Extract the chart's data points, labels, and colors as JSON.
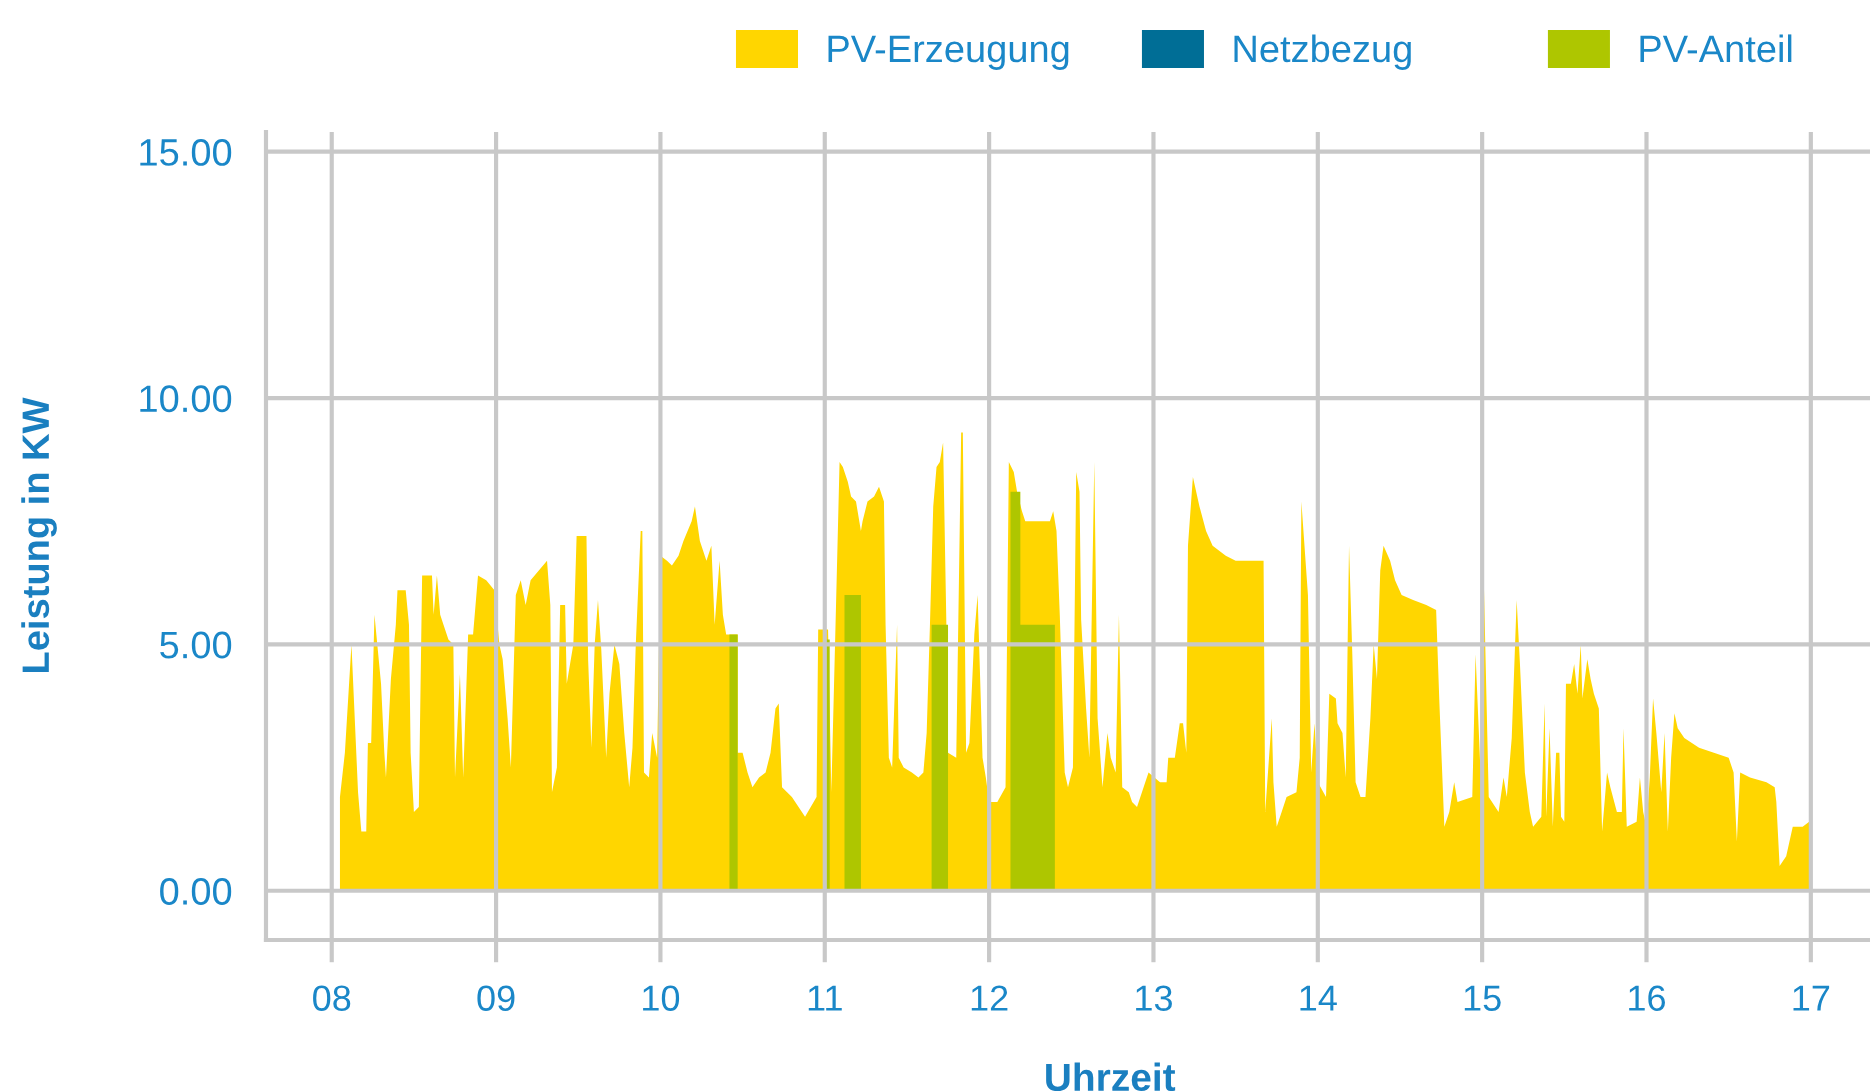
{
  "chart_data": {
    "type": "area",
    "xlabel": "Uhrzeit",
    "ylabel": "Leistung in KW",
    "xlim": [
      7.6,
      17.36
    ],
    "ylim": [
      -1,
      15.4
    ],
    "xticks": [
      {
        "value": 8,
        "label": "08"
      },
      {
        "value": 9,
        "label": "09"
      },
      10,
      11,
      12,
      13,
      14,
      15,
      16,
      17
    ],
    "yticks": [
      {
        "value": 0,
        "label": "0.00"
      },
      {
        "value": 5,
        "label": "5.00"
      },
      {
        "value": 10,
        "label": "10.00"
      },
      {
        "value": 15,
        "label": "15.00"
      }
    ],
    "grid": true,
    "legend": "top right",
    "series": [
      {
        "name": "PV-Erzeugung",
        "color": "#ffd600",
        "x": [
          8.05,
          8.08,
          8.12,
          8.16,
          8.18,
          8.21,
          8.22,
          8.24,
          8.26,
          8.3,
          8.32,
          8.33,
          8.36,
          8.39,
          8.4,
          8.45,
          8.47,
          8.48,
          8.5,
          8.53,
          8.55,
          8.61,
          8.62,
          8.64,
          8.66,
          8.68,
          8.71,
          8.74,
          8.75,
          8.78,
          8.8,
          8.83,
          8.86,
          8.89,
          8.94,
          8.99,
          9.02,
          9.04,
          9.07,
          9.09,
          9.12,
          9.15,
          9.18,
          9.21,
          9.26,
          9.31,
          9.33,
          9.34,
          9.37,
          9.39,
          9.42,
          9.43,
          9.47,
          9.49,
          9.55,
          9.56,
          9.58,
          9.6,
          9.62,
          9.64,
          9.67,
          9.69,
          9.72,
          9.75,
          9.78,
          9.81,
          9.83,
          9.85,
          9.88,
          9.89,
          9.9,
          9.93,
          9.95,
          9.98,
          10.0,
          10.04,
          10.07,
          10.11,
          10.14,
          10.19,
          10.21,
          10.24,
          10.28,
          10.31,
          10.33,
          10.36,
          10.38,
          10.4,
          10.47,
          10.47,
          10.5,
          10.53,
          10.56,
          10.6,
          10.64,
          10.67,
          10.7,
          10.72,
          10.74,
          10.8,
          10.88,
          10.95,
          10.96,
          10.99,
          11.02,
          11.04,
          11.07,
          11.09,
          11.11,
          11.14,
          11.16,
          11.19,
          11.22,
          11.23,
          11.26,
          11.3,
          11.33,
          11.36,
          11.37,
          11.39,
          11.41,
          11.44,
          11.45,
          11.48,
          11.53,
          11.57,
          11.6,
          11.62,
          11.64,
          11.66,
          11.68,
          11.7,
          11.72,
          11.74,
          11.75,
          11.8,
          11.83,
          11.84,
          11.86,
          11.88,
          11.91,
          11.93,
          11.96,
          11.98,
          12.0,
          12.05,
          12.1,
          12.12,
          12.15,
          12.17,
          12.2,
          12.22,
          12.37,
          12.39,
          12.41,
          12.43,
          12.46,
          12.48,
          12.51,
          12.53,
          12.55,
          12.56,
          12.59,
          12.61,
          12.64,
          12.66,
          12.69,
          12.72,
          12.74,
          12.77,
          12.79,
          12.81,
          12.85,
          12.87,
          12.9,
          12.94,
          12.97,
          13.04,
          13.08,
          13.09,
          13.13,
          13.16,
          13.18,
          13.2,
          13.21,
          13.24,
          13.28,
          13.32,
          13.36,
          13.44,
          13.5,
          13.67,
          13.68,
          13.72,
          13.73,
          13.75,
          13.78,
          13.81,
          13.87,
          13.89,
          13.9,
          13.94,
          13.96,
          13.98,
          14.0,
          14.05,
          14.07,
          14.11,
          14.12,
          14.15,
          14.17,
          14.19,
          14.21,
          14.23,
          14.26,
          14.29,
          14.32,
          14.34,
          14.36,
          14.38,
          14.4,
          14.44,
          14.47,
          14.51,
          14.58,
          14.66,
          14.72,
          14.74,
          14.77,
          14.8,
          14.83,
          14.85,
          14.94,
          14.96,
          14.99,
          15.01,
          15.04,
          15.1,
          15.13,
          15.15,
          15.18,
          15.21,
          15.23,
          15.26,
          15.29,
          15.31,
          15.36,
          15.38,
          15.39,
          15.41,
          15.43,
          15.45,
          15.47,
          15.48,
          15.5,
          15.51,
          15.54,
          15.56,
          15.58,
          15.6,
          15.61,
          15.64,
          15.66,
          15.68,
          15.71,
          15.73,
          15.76,
          15.78,
          15.82,
          15.85,
          15.86,
          15.88,
          15.94,
          15.96,
          15.98,
          16.0,
          16.02,
          16.04,
          16.06,
          16.09,
          16.11,
          16.13,
          16.15,
          16.17,
          16.19,
          16.23,
          16.32,
          16.41,
          16.5,
          16.53,
          16.55,
          16.57,
          16.63,
          16.73,
          16.78,
          16.79,
          16.81,
          16.85,
          16.89,
          16.95,
          16.99,
          17.0
        ],
        "values": [
          1.9,
          2.8,
          5.0,
          2.0,
          1.2,
          1.2,
          3.0,
          3.0,
          5.6,
          4.2,
          2.8,
          2.3,
          4.3,
          5.4,
          6.1,
          6.1,
          5.4,
          2.8,
          1.6,
          1.7,
          6.4,
          6.4,
          5.6,
          6.4,
          5.6,
          5.4,
          5.1,
          5.0,
          2.3,
          4.4,
          2.3,
          5.2,
          5.2,
          6.4,
          6.3,
          6.1,
          5.0,
          4.7,
          3.5,
          2.5,
          6.0,
          6.3,
          5.8,
          6.3,
          6.5,
          6.7,
          5.8,
          2.0,
          2.5,
          5.8,
          5.8,
          4.2,
          5.0,
          7.2,
          7.2,
          4.7,
          2.9,
          5.0,
          5.9,
          4.9,
          2.7,
          4.0,
          5.0,
          4.6,
          3.2,
          2.1,
          2.9,
          5.0,
          7.3,
          7.3,
          2.4,
          2.3,
          3.2,
          2.7,
          6.8,
          6.7,
          6.6,
          6.8,
          7.1,
          7.5,
          7.8,
          7.1,
          6.7,
          7.0,
          5.4,
          6.7,
          5.6,
          5.2,
          5.2,
          2.8,
          2.8,
          2.4,
          2.1,
          2.3,
          2.4,
          2.8,
          3.7,
          3.8,
          2.1,
          1.9,
          1.5,
          1.9,
          5.3,
          5.3,
          5.3,
          2.0,
          6.0,
          8.7,
          8.6,
          8.3,
          8.0,
          7.9,
          7.3,
          7.5,
          7.9,
          8.0,
          8.2,
          7.9,
          5.4,
          2.7,
          2.5,
          5.4,
          2.7,
          2.5,
          2.4,
          2.3,
          2.4,
          3.2,
          5.4,
          7.8,
          8.6,
          8.7,
          9.1,
          5.4,
          2.8,
          2.7,
          9.3,
          9.3,
          2.8,
          3.0,
          5.2,
          6.0,
          2.7,
          2.3,
          1.8,
          1.8,
          2.1,
          8.7,
          8.5,
          8.1,
          7.7,
          7.5,
          7.5,
          7.7,
          7.3,
          5.6,
          2.4,
          2.1,
          2.5,
          8.5,
          8.1,
          5.5,
          3.7,
          2.7,
          8.7,
          3.5,
          2.1,
          3.2,
          2.7,
          2.4,
          5.6,
          2.1,
          2.0,
          1.8,
          1.7,
          2.1,
          2.4,
          2.2,
          2.2,
          2.7,
          2.7,
          3.4,
          3.4,
          2.8,
          7.0,
          8.4,
          7.8,
          7.3,
          7.0,
          6.8,
          6.7,
          6.7,
          1.6,
          3.5,
          2.2,
          1.3,
          1.6,
          1.9,
          2.0,
          2.7,
          7.9,
          6.0,
          2.4,
          3.4,
          2.2,
          1.9,
          4.0,
          3.9,
          3.4,
          3.2,
          2.3,
          7.0,
          4.8,
          2.2,
          1.9,
          1.9,
          3.5,
          5.0,
          4.3,
          6.5,
          7.0,
          6.7,
          6.3,
          6.0,
          5.9,
          5.8,
          5.7,
          3.8,
          1.3,
          1.6,
          2.2,
          1.8,
          1.9,
          4.8,
          2.4,
          6.3,
          1.9,
          1.6,
          2.3,
          1.9,
          3.1,
          5.9,
          4.6,
          2.4,
          1.6,
          1.3,
          1.5,
          3.8,
          1.5,
          3.3,
          1.3,
          2.8,
          2.8,
          1.5,
          1.4,
          4.2,
          4.2,
          4.6,
          4.0,
          5.0,
          3.9,
          4.7,
          4.3,
          4.0,
          3.7,
          1.2,
          2.4,
          2.1,
          1.6,
          1.6,
          3.3,
          1.3,
          1.4,
          2.3,
          1.6,
          1.3,
          2.3,
          3.9,
          3.2,
          2.0,
          3.2,
          1.2,
          2.7,
          3.6,
          3.3,
          3.1,
          2.9,
          2.8,
          2.7,
          2.4,
          1.0,
          2.4,
          2.3,
          2.2,
          2.1,
          1.8,
          0.5,
          0.7,
          1.3,
          1.3,
          1.4,
          1.4
        ]
      },
      {
        "name": "Netzbezug",
        "color": "#006e96"
      },
      {
        "name": "PV-Anteil",
        "color": "#aec600",
        "x": [
          10.42,
          10.42,
          10.47,
          10.47,
          11.01,
          11.01,
          11.03,
          11.03,
          11.12,
          11.12,
          11.22,
          11.22,
          11.65,
          11.65,
          11.75,
          11.75,
          12.13,
          12.13,
          12.19,
          12.19,
          12.4,
          12.4
        ],
        "values": [
          0,
          5.2,
          5.2,
          0,
          0,
          5.1,
          5.1,
          0,
          0,
          6.0,
          6.0,
          0,
          0,
          5.4,
          5.4,
          0,
          0,
          8.1,
          8.1,
          5.4,
          5.4,
          0
        ]
      }
    ]
  }
}
